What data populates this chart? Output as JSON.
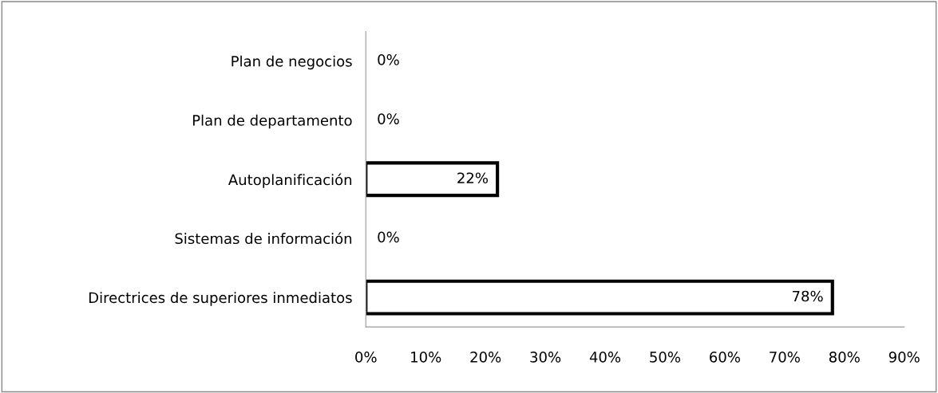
{
  "chart_data": {
    "type": "bar",
    "orientation": "horizontal",
    "categories": [
      "Plan de negocios",
      "Plan de departamento",
      "Autoplanificación",
      "Sistemas de información",
      "Directrices de superiores inmediatos"
    ],
    "values": [
      0,
      0,
      22,
      0,
      78
    ],
    "value_labels": [
      "0%",
      "0%",
      "22%",
      "0%",
      "78%"
    ],
    "color": "#ffffff",
    "xlim": [
      0,
      90
    ],
    "xticks": [
      {
        "value": 0,
        "label": "0%"
      },
      {
        "value": 10,
        "label": "10%"
      },
      {
        "value": 20,
        "label": "20%"
      },
      {
        "value": 30,
        "label": "30%"
      },
      {
        "value": 40,
        "label": "40%"
      },
      {
        "value": 50,
        "label": "50%"
      },
      {
        "value": 60,
        "label": "60%"
      },
      {
        "value": 70,
        "label": "70%"
      },
      {
        "value": 80,
        "label": "80%"
      },
      {
        "value": 90,
        "label": "90%"
      }
    ],
    "grid": false,
    "legend": false
  }
}
